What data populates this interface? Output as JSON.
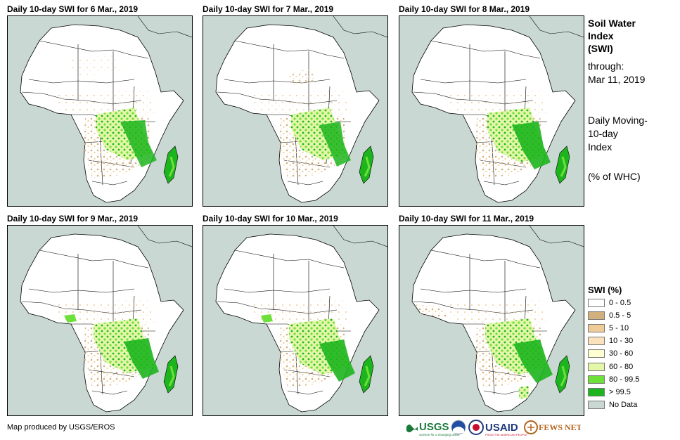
{
  "panels": [
    {
      "title": "Daily 10-day SWI for 6 Mar., 2019"
    },
    {
      "title": "Daily 10-day SWI for 7 Mar., 2019"
    },
    {
      "title": "Daily 10-day SWI for 8 Mar., 2019"
    },
    {
      "title": "Daily 10-day SWI for 9 Mar., 2019"
    },
    {
      "title": "Daily 10-day SWI for 10 Mar., 2019"
    },
    {
      "title": "Daily 10-day SWI for 11 Mar., 2019"
    }
  ],
  "side_info": {
    "title_lines": [
      "Soil Water",
      "Index",
      "(SWI)"
    ],
    "through_label": "through:",
    "through_date": "Mar 11, 2019",
    "desc_lines": [
      "Daily Moving-",
      "10-day",
      "Index"
    ],
    "unit": "(% of WHC)"
  },
  "legend": {
    "title": "SWI (%)",
    "items": [
      {
        "label": "0 - 0.5",
        "color": "#ffffff"
      },
      {
        "label": "0.5 - 5",
        "color": "#d2b07e"
      },
      {
        "label": "5 - 10",
        "color": "#efcb98"
      },
      {
        "label": "10 - 30",
        "color": "#fbe2bc"
      },
      {
        "label": "30 - 60",
        "color": "#ffffd2"
      },
      {
        "label": "60 - 80",
        "color": "#e2f7a8"
      },
      {
        "label": "80 - 99.5",
        "color": "#6ee03a"
      },
      {
        "label": "> 99.5",
        "color": "#1db51d"
      },
      {
        "label": "No Data",
        "color": "#c9d8d2"
      }
    ]
  },
  "credit": "Map produced by USGS/EROS",
  "logos": {
    "usgs": "USGS",
    "usgs_tagline": "science for a changing world",
    "usaid": "USAID",
    "usaid_tagline": "FROM THE AMERICAN PEOPLE",
    "fewsnet": "FEWS NET"
  }
}
